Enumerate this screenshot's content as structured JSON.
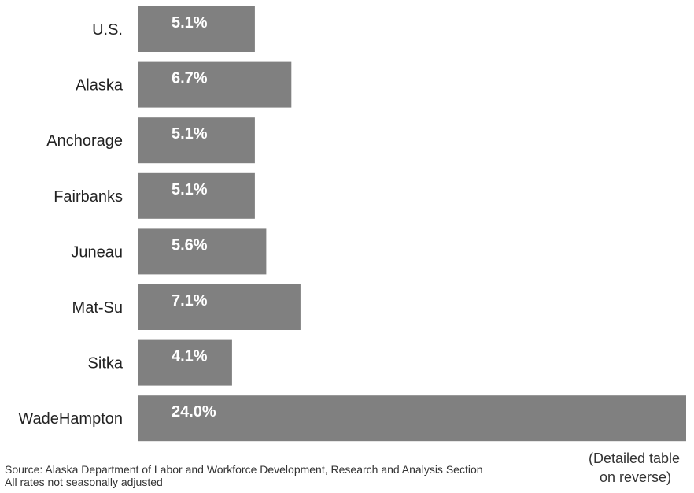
{
  "chart_data": {
    "type": "bar",
    "orientation": "horizontal",
    "categories": [
      "U.S.",
      "Alaska",
      "Anchorage",
      "Fairbanks",
      "Juneau",
      "Mat-Su",
      "Sitka",
      "WadeHampton"
    ],
    "values": [
      5.1,
      6.7,
      5.1,
      5.1,
      5.6,
      7.1,
      4.1,
      24.0
    ],
    "value_labels": [
      "5.1%",
      "6.7%",
      "5.1%",
      "5.1%",
      "5.6%",
      "7.1%",
      "4.1%",
      "24.0%"
    ],
    "bar_color": "#808080",
    "title": "",
    "xlabel": "",
    "ylabel": "",
    "xlim": [
      0,
      24
    ],
    "grid": false
  },
  "footer": {
    "source": "Source: Alaska Department of Labor and Workforce Development, Research and Analysis Section",
    "note": "All rates not seasonally adjusted"
  },
  "side_note": {
    "line1": "(Detailed table",
    "line2": "on reverse)"
  }
}
